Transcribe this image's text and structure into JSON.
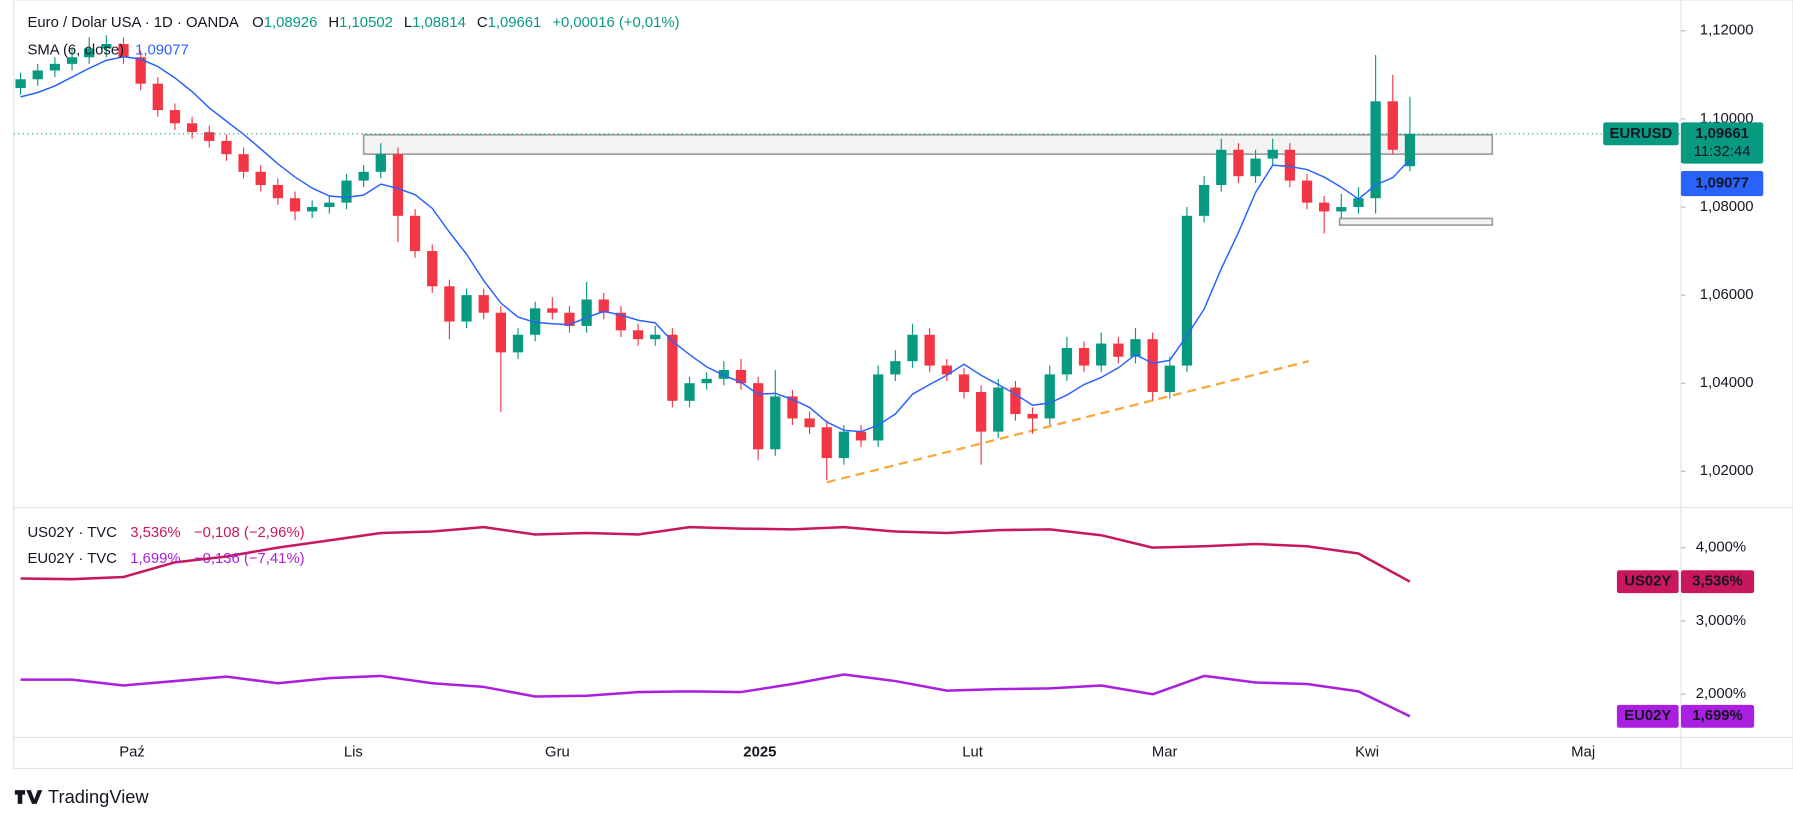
{
  "chart_data": [
    {
      "type": "candlestick",
      "title": "Euro / Dolar USA · 1D · OANDA",
      "ohlc_keys": [
        "O",
        "H",
        "L",
        "C"
      ],
      "ohlc_labels": [
        "1,08926",
        "1,10502",
        "1,08814",
        "1,09661"
      ],
      "change_label": "+0,00016 (+0,01%)",
      "symbol_tag": "EURUSD",
      "countdown": "11:32:44",
      "last_label": "1,09661",
      "up_color": "#089981",
      "down_color": "#f23645",
      "candles": [
        [
          1.107,
          1.1105,
          1.1055,
          1.109
        ],
        [
          1.109,
          1.1125,
          1.1075,
          1.111
        ],
        [
          1.111,
          1.114,
          1.1095,
          1.1125
        ],
        [
          1.1125,
          1.116,
          1.111,
          1.114
        ],
        [
          1.114,
          1.1185,
          1.1125,
          1.116
        ],
        [
          1.116,
          1.119,
          1.114,
          1.117
        ],
        [
          1.117,
          1.1185,
          1.1125,
          1.114
        ],
        [
          1.114,
          1.1155,
          1.1065,
          1.108
        ],
        [
          1.108,
          1.1095,
          1.1005,
          1.102
        ],
        [
          1.102,
          1.1035,
          1.0975,
          1.099
        ],
        [
          1.099,
          1.1005,
          1.0955,
          1.097
        ],
        [
          1.097,
          1.0985,
          1.0935,
          1.095
        ],
        [
          1.095,
          1.0965,
          1.0905,
          1.092
        ],
        [
          1.092,
          1.0935,
          1.0865,
          1.088
        ],
        [
          1.088,
          1.0895,
          1.0835,
          1.085
        ],
        [
          1.085,
          1.0865,
          1.0805,
          1.082
        ],
        [
          1.082,
          1.0835,
          1.077,
          1.079
        ],
        [
          1.079,
          1.0815,
          1.0775,
          1.08
        ],
        [
          1.08,
          1.0825,
          1.0785,
          1.081
        ],
        [
          1.081,
          1.0875,
          1.0795,
          1.086
        ],
        [
          1.086,
          1.0895,
          1.0845,
          1.088
        ],
        [
          1.088,
          1.0945,
          1.0865,
          1.092
        ],
        [
          1.092,
          1.0935,
          1.072,
          1.078
        ],
        [
          1.078,
          1.0795,
          1.0685,
          1.07
        ],
        [
          1.07,
          1.0715,
          1.0605,
          1.062
        ],
        [
          1.062,
          1.0635,
          1.05,
          1.054
        ],
        [
          1.054,
          1.0615,
          1.0525,
          1.06
        ],
        [
          1.06,
          1.0615,
          1.0545,
          1.056
        ],
        [
          1.056,
          1.0575,
          1.0335,
          1.047
        ],
        [
          1.047,
          1.0525,
          1.0455,
          1.051
        ],
        [
          1.051,
          1.0585,
          1.0495,
          1.057
        ],
        [
          1.057,
          1.0595,
          1.0545,
          1.056
        ],
        [
          1.056,
          1.0575,
          1.0515,
          1.053
        ],
        [
          1.053,
          1.063,
          1.0515,
          1.059
        ],
        [
          1.059,
          1.0605,
          1.0545,
          1.056
        ],
        [
          1.056,
          1.0575,
          1.0505,
          1.052
        ],
        [
          1.052,
          1.0535,
          1.0485,
          1.05
        ],
        [
          1.05,
          1.053,
          1.0485,
          1.051
        ],
        [
          1.051,
          1.0525,
          1.0345,
          1.036
        ],
        [
          1.036,
          1.0415,
          1.0345,
          1.04
        ],
        [
          1.04,
          1.0425,
          1.0385,
          1.041
        ],
        [
          1.041,
          1.045,
          1.0395,
          1.043
        ],
        [
          1.043,
          1.0455,
          1.0385,
          1.04
        ],
        [
          1.04,
          1.0415,
          1.0225,
          1.025
        ],
        [
          1.025,
          1.043,
          1.0235,
          1.037
        ],
        [
          1.037,
          1.0385,
          1.0305,
          1.032
        ],
        [
          1.032,
          1.0335,
          1.0285,
          1.03
        ],
        [
          1.03,
          1.0315,
          1.018,
          1.023
        ],
        [
          1.023,
          1.0305,
          1.0215,
          1.029
        ],
        [
          1.029,
          1.0305,
          1.0255,
          1.027
        ],
        [
          1.027,
          1.044,
          1.0255,
          1.042
        ],
        [
          1.042,
          1.0475,
          1.0405,
          1.045
        ],
        [
          1.045,
          1.0535,
          1.0435,
          1.051
        ],
        [
          1.051,
          1.0525,
          1.0425,
          1.044
        ],
        [
          1.044,
          1.0455,
          1.0405,
          1.042
        ],
        [
          1.042,
          1.0435,
          1.0365,
          1.038
        ],
        [
          1.038,
          1.0395,
          1.0215,
          1.029
        ],
        [
          1.029,
          1.041,
          1.0275,
          1.039
        ],
        [
          1.039,
          1.0405,
          1.0315,
          1.033
        ],
        [
          1.033,
          1.0345,
          1.0285,
          1.032
        ],
        [
          1.032,
          1.044,
          1.0305,
          1.042
        ],
        [
          1.042,
          1.0505,
          1.0405,
          1.048
        ],
        [
          1.048,
          1.0495,
          1.0425,
          1.044
        ],
        [
          1.044,
          1.0515,
          1.0425,
          1.049
        ],
        [
          1.049,
          1.0505,
          1.0445,
          1.046
        ],
        [
          1.046,
          1.0525,
          1.0445,
          1.05
        ],
        [
          1.05,
          1.0515,
          1.036,
          1.038
        ],
        [
          1.038,
          1.046,
          1.0365,
          1.044
        ],
        [
          1.044,
          1.08,
          1.0425,
          1.078
        ],
        [
          1.078,
          1.087,
          1.0765,
          1.085
        ],
        [
          1.085,
          1.0955,
          1.0835,
          1.093
        ],
        [
          1.093,
          1.0945,
          1.0855,
          1.087
        ],
        [
          1.087,
          1.093,
          1.0855,
          1.091
        ],
        [
          1.091,
          1.0955,
          1.0895,
          1.093
        ],
        [
          1.093,
          1.0945,
          1.0845,
          1.086
        ],
        [
          1.086,
          1.0875,
          1.0795,
          1.081
        ],
        [
          1.081,
          1.0825,
          1.074,
          1.079
        ],
        [
          1.079,
          1.083,
          1.0775,
          1.08
        ],
        [
          1.08,
          1.0845,
          1.0785,
          1.082
        ],
        [
          1.082,
          1.1145,
          1.0785,
          1.104
        ],
        [
          1.104,
          1.11,
          1.092,
          1.093
        ],
        [
          1.08926,
          1.10502,
          1.08814,
          1.09661
        ]
      ],
      "series": [
        {
          "name": "SMA (6, close)",
          "color": "#2962ff",
          "value_label": "1,09077",
          "values": [
            1.105,
            1.106,
            1.1075,
            1.1095,
            1.1115,
            1.1133,
            1.1141,
            1.1136,
            1.1119,
            1.1093,
            1.1062,
            1.1025,
            1.0995,
            1.0965,
            1.0932,
            1.0898,
            1.0868,
            1.0843,
            1.0825,
            1.0822,
            1.0827,
            1.0852,
            1.0842,
            1.0828,
            1.0797,
            1.0743,
            1.0693,
            1.0633,
            1.0582,
            1.055,
            1.0538,
            1.0535,
            1.0533,
            1.0549,
            1.0563,
            1.0555,
            1.0543,
            1.0537,
            1.0495,
            1.0465,
            1.0437,
            1.0418,
            1.0402,
            1.0375,
            1.0377,
            1.0363,
            1.0345,
            1.0312,
            1.0293,
            1.029,
            1.0305,
            1.033,
            1.0375,
            1.0397,
            1.0418,
            1.0443,
            1.0418,
            1.0397,
            1.0375,
            1.035,
            1.0355,
            1.0373,
            1.0397,
            1.0413,
            1.0435,
            1.0465,
            1.0445,
            1.0452,
            1.0508,
            1.0568,
            1.066,
            1.0742,
            1.0833,
            1.0895,
            1.0892,
            1.0885,
            1.0868,
            1.0845,
            1.0818,
            1.085,
            1.0867,
            1.09077
          ]
        }
      ],
      "zones": [
        {
          "x": [
            20,
            85.8
          ],
          "y": [
            1.092,
            1.0964
          ]
        },
        {
          "x": [
            76.9,
            85.8
          ],
          "y": [
            1.0759,
            1.0774
          ]
        }
      ],
      "trendline": {
        "x": [
          47,
          75.1
        ],
        "y": [
          1.0175,
          1.045
        ],
        "color": "#f7a93b"
      },
      "xlim": [
        -0.4,
        96.8
      ],
      "xticks": [
        {
          "value": 6.5,
          "label": "Paź"
        },
        {
          "value": 19.4,
          "label": "Lis"
        },
        {
          "value": 31.3,
          "label": "Gru"
        },
        {
          "value": 43.1,
          "label": "2025"
        },
        {
          "value": 55.5,
          "label": "Lut"
        },
        {
          "value": 66.7,
          "label": "Mar"
        },
        {
          "value": 78.5,
          "label": "Kwi"
        },
        {
          "value": 91.1,
          "label": "Maj"
        }
      ],
      "ylim": [
        1.012,
        1.127
      ],
      "yticks": [
        {
          "value": 1.02,
          "label": "1,02000"
        },
        {
          "value": 1.04,
          "label": "1,04000"
        },
        {
          "value": 1.06,
          "label": "1,06000"
        },
        {
          "value": 1.08,
          "label": "1,08000"
        },
        {
          "value": 1.1,
          "label": "1,10000"
        },
        {
          "value": 1.12,
          "label": "1,12000"
        }
      ]
    },
    {
      "type": "line",
      "series": [
        {
          "name": "US02Y · TVC",
          "tag": "US02Y",
          "color": "#c8175d",
          "last_label": "3,536%",
          "change_label": "−0,108 (−2,96%)",
          "x": [
            0,
            3,
            6,
            9,
            12,
            15,
            18,
            21,
            24,
            27,
            30,
            33,
            36,
            39,
            42,
            45,
            48,
            51,
            54,
            57,
            60,
            63,
            66,
            69,
            72,
            75,
            78,
            81
          ],
          "values": [
            3.58,
            3.57,
            3.6,
            3.8,
            3.88,
            4.0,
            4.1,
            4.2,
            4.22,
            4.28,
            4.18,
            4.2,
            4.18,
            4.28,
            4.26,
            4.25,
            4.28,
            4.22,
            4.2,
            4.24,
            4.25,
            4.17,
            4.0,
            4.02,
            4.05,
            4.02,
            3.92,
            3.536
          ]
        },
        {
          "name": "EU02Y · TVC",
          "tag": "EU02Y",
          "color": "#aa1fe0",
          "last_label": "1,699%",
          "change_label": "−0,136 (−7,41%)",
          "x": [
            0,
            3,
            6,
            9,
            12,
            15,
            18,
            21,
            24,
            27,
            30,
            33,
            36,
            39,
            42,
            45,
            48,
            51,
            54,
            57,
            60,
            63,
            66,
            69,
            72,
            75,
            78,
            81
          ],
          "values": [
            2.2,
            2.2,
            2.12,
            2.18,
            2.24,
            2.15,
            2.22,
            2.25,
            2.15,
            2.1,
            1.97,
            1.98,
            2.03,
            2.04,
            2.03,
            2.14,
            2.27,
            2.18,
            2.05,
            2.07,
            2.08,
            2.12,
            2.0,
            2.25,
            2.16,
            2.14,
            2.04,
            1.699
          ]
        }
      ],
      "ylim": [
        1.41,
        4.53
      ],
      "yticks": [
        {
          "value": 2,
          "label": "2,000%"
        },
        {
          "value": 3,
          "label": "3,000%"
        },
        {
          "value": 4,
          "label": "4,000%"
        }
      ]
    }
  ],
  "footer": {
    "brand": "TradingView"
  }
}
